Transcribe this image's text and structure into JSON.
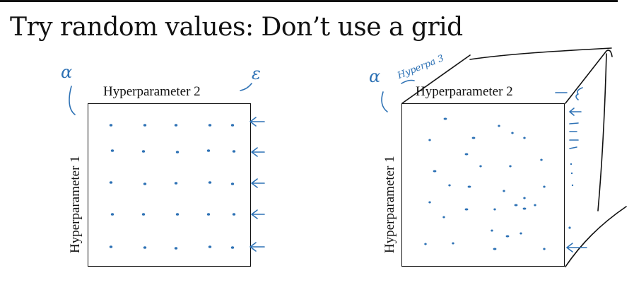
{
  "slide": {
    "title": "Try random values: Don’t use a grid"
  },
  "ink_color": "#2e72b5",
  "left_panel": {
    "x_label": "Hyperparameter 2",
    "y_label": "Hyperparameter 1",
    "x_annotation": "ε",
    "y_annotation": "α",
    "sampling": "grid 5 x 5",
    "grid_rows": 5,
    "grid_cols": 5
  },
  "right_panel": {
    "x_label": "Hyperparameter 2",
    "y_label": "Hyperparameter 1",
    "depth_annotation": "Hyperpa 3",
    "y_annotation": "α",
    "sampling": "random"
  }
}
